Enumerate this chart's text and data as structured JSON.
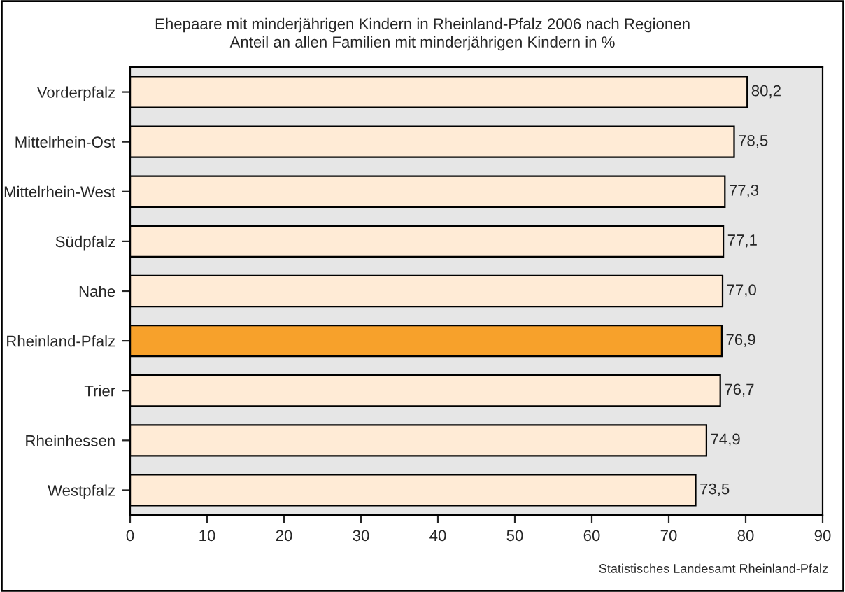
{
  "chart_data": {
    "type": "bar",
    "orientation": "horizontal",
    "title": "Ehepaare mit minderjährigen Kindern in Rheinland-Pfalz 2006 nach Regionen",
    "subtitle": "Anteil an allen Familien mit minderjährigen Kindern in %",
    "categories": [
      "Vorderpfalz",
      "Mittelrhein-Ost",
      "Mittelrhein-West",
      "Südpfalz",
      "Nahe",
      "Rheinland-Pfalz",
      "Trier",
      "Rheinhessen",
      "Westpfalz"
    ],
    "values": [
      80.2,
      78.5,
      77.3,
      77.1,
      77.0,
      76.9,
      76.7,
      74.9,
      73.5
    ],
    "value_labels": [
      "80,2",
      "78,5",
      "77,3",
      "77,1",
      "77,0",
      "76,9",
      "76,7",
      "74,9",
      "73,5"
    ],
    "colors": [
      "#ffebd6",
      "#ffebd6",
      "#ffebd6",
      "#ffebd6",
      "#ffebd6",
      "#f7a12b",
      "#ffebd6",
      "#ffebd6",
      "#ffebd6"
    ],
    "xlim": [
      0,
      90
    ],
    "xticks": [
      0,
      10,
      20,
      30,
      40,
      50,
      60,
      70,
      80,
      90
    ],
    "grid": false,
    "annotations": [
      "Statistisches Landesamt Rheinland-Pfalz"
    ]
  }
}
